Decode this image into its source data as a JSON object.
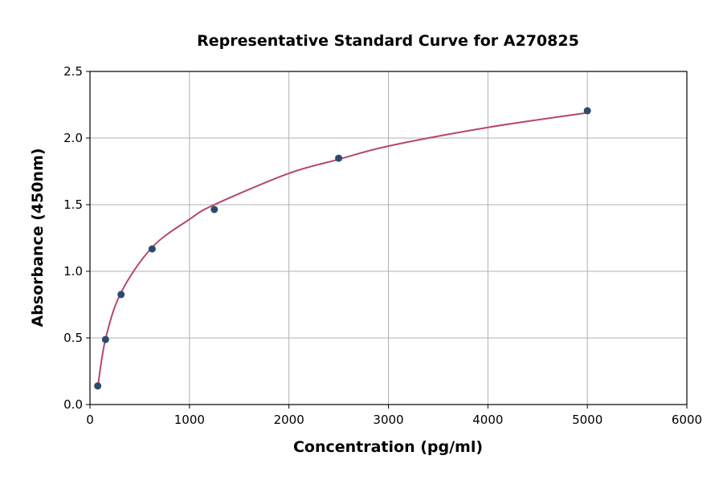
{
  "chart_data": {
    "type": "scatter",
    "title": "Representative Standard Curve for A270825",
    "xlabel": "Concentration (pg/ml)",
    "ylabel": "Absorbance (450nm)",
    "xlim": [
      0,
      6000
    ],
    "ylim": [
      0,
      2.5
    ],
    "xticks": [
      "0",
      "1000",
      "2000",
      "3000",
      "4000",
      "5000",
      "6000"
    ],
    "yticks": [
      "0.0",
      "0.5",
      "1.0",
      "1.5",
      "2.0",
      "2.5"
    ],
    "grid": true,
    "points": {
      "x": [
        78.125,
        156.25,
        312.5,
        625,
        1250,
        2500,
        5000
      ],
      "y": [
        0.14,
        0.488,
        0.826,
        1.168,
        1.464,
        1.849,
        2.205
      ]
    },
    "fit_curve": {
      "x": [
        78,
        156,
        312,
        625,
        1000,
        1250,
        2000,
        2500,
        3000,
        4000,
        5000
      ],
      "y": [
        0.13,
        0.49,
        0.84,
        1.18,
        1.39,
        1.5,
        1.735,
        1.84,
        1.94,
        2.08,
        2.19
      ]
    },
    "colors": {
      "points": "#2c4a6e",
      "curve": "#b5476b",
      "grid": "#b0b0b0"
    }
  }
}
